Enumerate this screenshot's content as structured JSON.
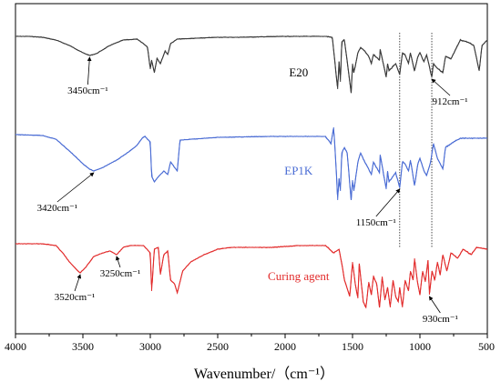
{
  "chart_data": {
    "type": "line",
    "xlabel": "Wavenumber/（cm⁻¹）",
    "xlim": [
      4000,
      500
    ],
    "xticks": [
      4000,
      3500,
      3000,
      2500,
      2000,
      1500,
      1000,
      500
    ],
    "yaxis": "stacked, no ticks",
    "grid": false,
    "reference_lines": [
      1150,
      912
    ],
    "series": [
      {
        "name": "E20",
        "color": "#3a3a3a",
        "offset": 40,
        "label_x": 1900,
        "points": [
          [
            4000,
            0
          ],
          [
            3900,
            0
          ],
          [
            3800,
            1
          ],
          [
            3700,
            4
          ],
          [
            3600,
            10
          ],
          [
            3500,
            18
          ],
          [
            3450,
            21
          ],
          [
            3400,
            19
          ],
          [
            3300,
            10
          ],
          [
            3200,
            4
          ],
          [
            3100,
            3
          ],
          [
            3050,
            8
          ],
          [
            3020,
            12
          ],
          [
            3000,
            36
          ],
          [
            2990,
            26
          ],
          [
            2970,
            40
          ],
          [
            2950,
            24
          ],
          [
            2925,
            30
          ],
          [
            2890,
            16
          ],
          [
            2870,
            20
          ],
          [
            2850,
            8
          ],
          [
            2800,
            3
          ],
          [
            2500,
            1
          ],
          [
            2350,
            1
          ],
          [
            2000,
            0
          ],
          [
            1700,
            0
          ],
          [
            1650,
            1
          ],
          [
            1610,
            58
          ],
          [
            1600,
            28
          ],
          [
            1590,
            50
          ],
          [
            1580,
            6
          ],
          [
            1560,
            4
          ],
          [
            1510,
            62
          ],
          [
            1500,
            30
          ],
          [
            1490,
            40
          ],
          [
            1460,
            18
          ],
          [
            1440,
            12
          ],
          [
            1410,
            16
          ],
          [
            1380,
            22
          ],
          [
            1360,
            30
          ],
          [
            1345,
            20
          ],
          [
            1300,
            26
          ],
          [
            1295,
            14
          ],
          [
            1250,
            45
          ],
          [
            1240,
            30
          ],
          [
            1230,
            38
          ],
          [
            1180,
            30
          ],
          [
            1150,
            42
          ],
          [
            1130,
            18
          ],
          [
            1110,
            20
          ],
          [
            1085,
            30
          ],
          [
            1070,
            18
          ],
          [
            1040,
            38
          ],
          [
            1015,
            22
          ],
          [
            1000,
            18
          ],
          [
            970,
            28
          ],
          [
            950,
            20
          ],
          [
            912,
            45
          ],
          [
            900,
            30
          ],
          [
            870,
            35
          ],
          [
            830,
            40
          ],
          [
            810,
            22
          ],
          [
            770,
            25
          ],
          [
            700,
            4
          ],
          [
            650,
            6
          ],
          [
            600,
            10
          ],
          [
            560,
            38
          ],
          [
            540,
            10
          ],
          [
            500,
            4
          ]
        ]
      },
      {
        "name": "EP1K",
        "color": "#4a6cd4",
        "offset": 148,
        "label_x": 1900,
        "points": [
          [
            4000,
            0
          ],
          [
            3800,
            1
          ],
          [
            3700,
            5
          ],
          [
            3600,
            18
          ],
          [
            3500,
            32
          ],
          [
            3450,
            38
          ],
          [
            3420,
            40
          ],
          [
            3350,
            36
          ],
          [
            3250,
            28
          ],
          [
            3150,
            18
          ],
          [
            3100,
            12
          ],
          [
            3060,
            4
          ],
          [
            3040,
            2
          ],
          [
            3000,
            8
          ],
          [
            2990,
            46
          ],
          [
            2970,
            52
          ],
          [
            2950,
            48
          ],
          [
            2925,
            44
          ],
          [
            2900,
            40
          ],
          [
            2870,
            44
          ],
          [
            2850,
            30
          ],
          [
            2800,
            40
          ],
          [
            2780,
            6
          ],
          [
            2500,
            3
          ],
          [
            2100,
            2
          ],
          [
            1800,
            2
          ],
          [
            1700,
            2
          ],
          [
            1660,
            10
          ],
          [
            1640,
            -8
          ],
          [
            1620,
            40
          ],
          [
            1610,
            72
          ],
          [
            1600,
            48
          ],
          [
            1590,
            62
          ],
          [
            1580,
            20
          ],
          [
            1560,
            14
          ],
          [
            1540,
            20
          ],
          [
            1510,
            72
          ],
          [
            1500,
            50
          ],
          [
            1490,
            62
          ],
          [
            1460,
            30
          ],
          [
            1440,
            20
          ],
          [
            1410,
            30
          ],
          [
            1380,
            38
          ],
          [
            1360,
            44
          ],
          [
            1345,
            30
          ],
          [
            1300,
            42
          ],
          [
            1295,
            22
          ],
          [
            1250,
            60
          ],
          [
            1240,
            40
          ],
          [
            1230,
            52
          ],
          [
            1180,
            42
          ],
          [
            1150,
            58
          ],
          [
            1130,
            30
          ],
          [
            1110,
            32
          ],
          [
            1085,
            40
          ],
          [
            1070,
            28
          ],
          [
            1040,
            56
          ],
          [
            1015,
            32
          ],
          [
            1000,
            26
          ],
          [
            970,
            40
          ],
          [
            950,
            45
          ],
          [
            920,
            30
          ],
          [
            900,
            10
          ],
          [
            870,
            26
          ],
          [
            830,
            38
          ],
          [
            810,
            14
          ],
          [
            770,
            10
          ],
          [
            700,
            4
          ],
          [
            500,
            4
          ]
        ]
      },
      {
        "name": "Curing agent",
        "color": "#e22b2b",
        "offset": 268,
        "label_x": 1900,
        "points": [
          [
            4000,
            0
          ],
          [
            3800,
            0
          ],
          [
            3700,
            2
          ],
          [
            3650,
            10
          ],
          [
            3600,
            20
          ],
          [
            3550,
            28
          ],
          [
            3520,
            32
          ],
          [
            3480,
            26
          ],
          [
            3420,
            14
          ],
          [
            3350,
            10
          ],
          [
            3300,
            8
          ],
          [
            3250,
            12
          ],
          [
            3200,
            4
          ],
          [
            3150,
            2
          ],
          [
            3050,
            2
          ],
          [
            3000,
            10
          ],
          [
            2990,
            52
          ],
          [
            2970,
            6
          ],
          [
            2940,
            4
          ],
          [
            2925,
            34
          ],
          [
            2900,
            12
          ],
          [
            2870,
            8
          ],
          [
            2850,
            40
          ],
          [
            2820,
            44
          ],
          [
            2800,
            54
          ],
          [
            2760,
            30
          ],
          [
            2700,
            20
          ],
          [
            2600,
            12
          ],
          [
            2500,
            6
          ],
          [
            2400,
            4
          ],
          [
            2100,
            4
          ],
          [
            1900,
            2
          ],
          [
            1700,
            2
          ],
          [
            1640,
            10
          ],
          [
            1600,
            6
          ],
          [
            1570,
            30
          ],
          [
            1560,
            40
          ],
          [
            1520,
            58
          ],
          [
            1500,
            20
          ],
          [
            1480,
            44
          ],
          [
            1460,
            60
          ],
          [
            1450,
            22
          ],
          [
            1420,
            64
          ],
          [
            1400,
            70
          ],
          [
            1380,
            42
          ],
          [
            1360,
            56
          ],
          [
            1345,
            36
          ],
          [
            1320,
            44
          ],
          [
            1300,
            70
          ],
          [
            1280,
            36
          ],
          [
            1260,
            62
          ],
          [
            1240,
            48
          ],
          [
            1220,
            70
          ],
          [
            1200,
            40
          ],
          [
            1180,
            58
          ],
          [
            1160,
            64
          ],
          [
            1150,
            48
          ],
          [
            1130,
            70
          ],
          [
            1110,
            40
          ],
          [
            1085,
            52
          ],
          [
            1070,
            30
          ],
          [
            1050,
            40
          ],
          [
            1040,
            16
          ],
          [
            1020,
            40
          ],
          [
            1000,
            56
          ],
          [
            980,
            30
          ],
          [
            960,
            42
          ],
          [
            940,
            18
          ],
          [
            930,
            56
          ],
          [
            910,
            30
          ],
          [
            890,
            40
          ],
          [
            870,
            20
          ],
          [
            850,
            34
          ],
          [
            830,
            12
          ],
          [
            800,
            30
          ],
          [
            770,
            10
          ],
          [
            720,
            16
          ],
          [
            680,
            6
          ],
          [
            620,
            12
          ],
          [
            580,
            4
          ],
          [
            500,
            6
          ]
        ]
      }
    ],
    "annotations": [
      {
        "text": "3450cm⁻¹",
        "series": 0,
        "x": 3450
      },
      {
        "text": "912cm⁻¹",
        "series": 0,
        "x": 912
      },
      {
        "text": "3420cm⁻¹",
        "series": 1,
        "x": 3420
      },
      {
        "text": "1150cm⁻¹",
        "series": 1,
        "x": 1150
      },
      {
        "text": "3520cm⁻¹",
        "series": 2,
        "x": 3520
      },
      {
        "text": "3250cm⁻¹",
        "series": 2,
        "x": 3250
      },
      {
        "text": "930cm⁻¹",
        "series": 2,
        "x": 930
      }
    ]
  }
}
